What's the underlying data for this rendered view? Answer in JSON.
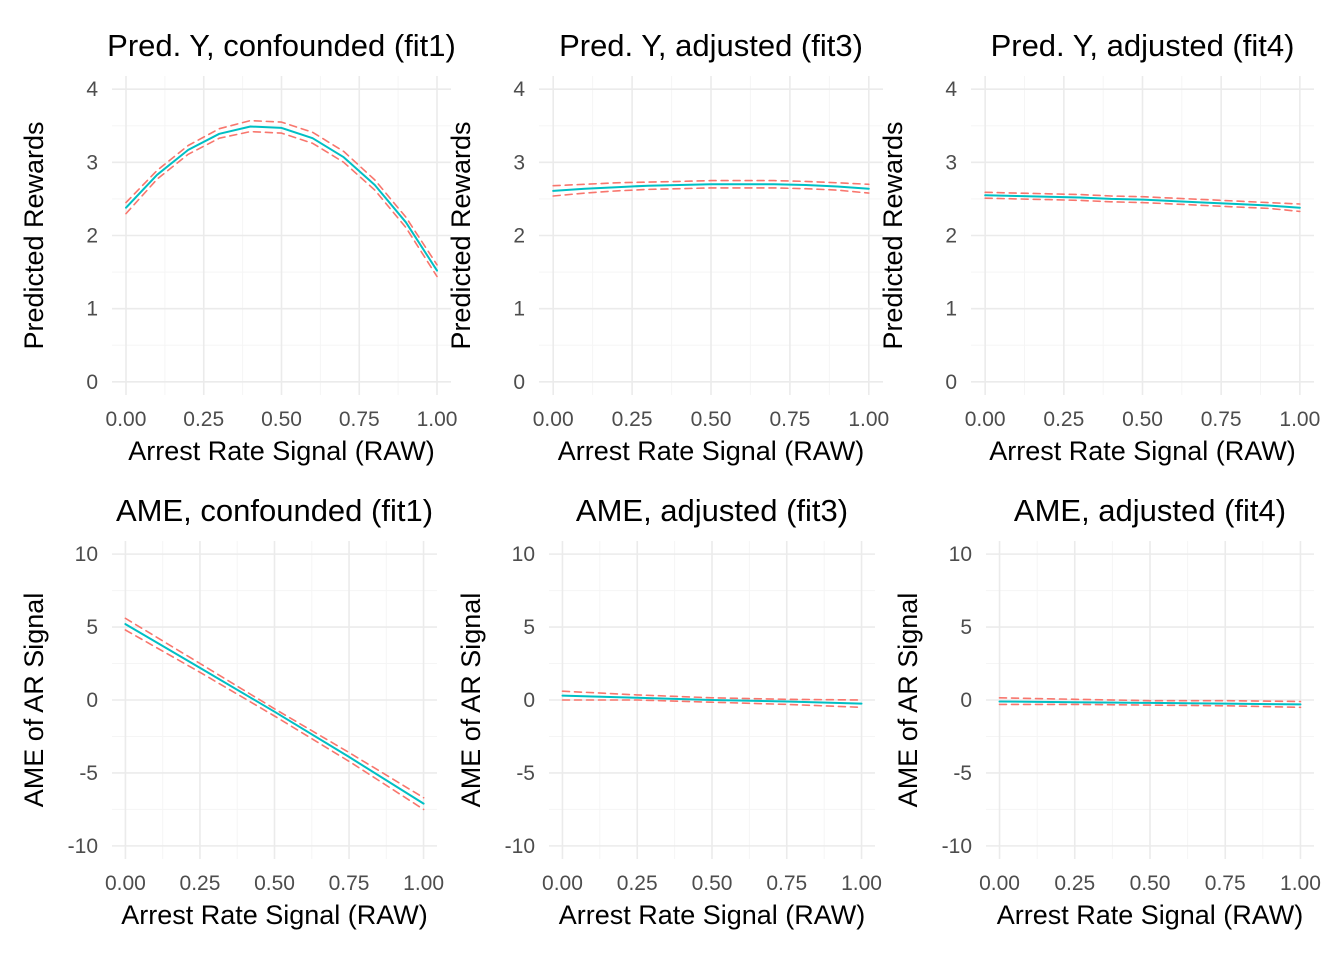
{
  "colors": {
    "fit_line": "#00BFC4",
    "ci_line": "#F8766D",
    "grid_major": "#EBEBEB",
    "grid_minor": "#F5F5F5",
    "tick_text": "#4D4D4D"
  },
  "chart_data": [
    {
      "type": "line",
      "title": "Pred. Y, confounded (fit1)",
      "xlabel": "Arrest Rate Signal (RAW)",
      "ylabel": "Predicted Rewards",
      "xlim": [
        0,
        1
      ],
      "ylim": [
        0,
        4
      ],
      "xticks": [
        0,
        0.25,
        0.5,
        0.75,
        1
      ],
      "xtick_labels": [
        "0.00",
        "0.25",
        "0.50",
        "0.75",
        "1.00"
      ],
      "yticks": [
        0,
        1,
        2,
        3,
        4
      ],
      "ytick_labels": [
        "0",
        "1",
        "2",
        "3",
        "4"
      ],
      "grid": true,
      "x": [
        0,
        0.1,
        0.2,
        0.3,
        0.4,
        0.5,
        0.6,
        0.7,
        0.8,
        0.9,
        1.0
      ],
      "series": [
        {
          "role": "fit",
          "values": [
            2.38,
            2.83,
            3.17,
            3.39,
            3.49,
            3.47,
            3.33,
            3.07,
            2.69,
            2.18,
            1.52
          ]
        },
        {
          "role": "upper",
          "values": [
            2.45,
            2.89,
            3.23,
            3.46,
            3.57,
            3.55,
            3.41,
            3.15,
            2.76,
            2.25,
            1.6
          ]
        },
        {
          "role": "lower",
          "values": [
            2.3,
            2.77,
            3.11,
            3.33,
            3.42,
            3.4,
            3.26,
            3.0,
            2.62,
            2.11,
            1.44
          ]
        }
      ]
    },
    {
      "type": "line",
      "title": "Pred. Y, adjusted (fit3)",
      "xlabel": "Arrest Rate Signal (RAW)",
      "ylabel": "Predicted Rewards",
      "xlim": [
        0,
        1
      ],
      "ylim": [
        0,
        4
      ],
      "xticks": [
        0,
        0.25,
        0.5,
        0.75,
        1
      ],
      "xtick_labels": [
        "0.00",
        "0.25",
        "0.50",
        "0.75",
        "1.00"
      ],
      "yticks": [
        0,
        1,
        2,
        3,
        4
      ],
      "ytick_labels": [
        "0",
        "1",
        "2",
        "3",
        "4"
      ],
      "grid": true,
      "x": [
        0,
        0.1,
        0.2,
        0.3,
        0.4,
        0.5,
        0.6,
        0.7,
        0.8,
        0.9,
        1.0
      ],
      "series": [
        {
          "role": "fit",
          "values": [
            2.61,
            2.64,
            2.66,
            2.68,
            2.69,
            2.7,
            2.7,
            2.7,
            2.69,
            2.67,
            2.64
          ]
        },
        {
          "role": "upper",
          "values": [
            2.68,
            2.7,
            2.72,
            2.73,
            2.74,
            2.75,
            2.75,
            2.75,
            2.74,
            2.72,
            2.7
          ]
        },
        {
          "role": "lower",
          "values": [
            2.54,
            2.58,
            2.61,
            2.63,
            2.64,
            2.65,
            2.65,
            2.65,
            2.64,
            2.62,
            2.58
          ]
        }
      ]
    },
    {
      "type": "line",
      "title": "Pred. Y, adjusted (fit4)",
      "xlabel": "Arrest Rate Signal (RAW)",
      "ylabel": "Predicted Rewards",
      "xlim": [
        0,
        1
      ],
      "ylim": [
        0,
        4
      ],
      "xticks": [
        0,
        0.25,
        0.5,
        0.75,
        1
      ],
      "xtick_labels": [
        "0.00",
        "0.25",
        "0.50",
        "0.75",
        "1.00"
      ],
      "yticks": [
        0,
        1,
        2,
        3,
        4
      ],
      "ytick_labels": [
        "0",
        "1",
        "2",
        "3",
        "4"
      ],
      "grid": true,
      "x": [
        0,
        0.1,
        0.2,
        0.3,
        0.4,
        0.5,
        0.6,
        0.7,
        0.8,
        0.9,
        1.0
      ],
      "series": [
        {
          "role": "fit",
          "values": [
            2.55,
            2.54,
            2.53,
            2.52,
            2.5,
            2.49,
            2.47,
            2.45,
            2.43,
            2.41,
            2.38
          ]
        },
        {
          "role": "upper",
          "values": [
            2.59,
            2.58,
            2.57,
            2.56,
            2.54,
            2.53,
            2.51,
            2.49,
            2.47,
            2.45,
            2.43
          ]
        },
        {
          "role": "lower",
          "values": [
            2.51,
            2.5,
            2.49,
            2.48,
            2.46,
            2.45,
            2.43,
            2.41,
            2.39,
            2.37,
            2.33
          ]
        }
      ]
    },
    {
      "type": "line",
      "title": "AME, confounded (fit1)",
      "xlabel": "Arrest Rate Signal (RAW)",
      "ylabel": "AME of AR Signal",
      "xlim": [
        0,
        1
      ],
      "ylim": [
        -10,
        10
      ],
      "xticks": [
        0,
        0.25,
        0.5,
        0.75,
        1
      ],
      "xtick_labels": [
        "0.00",
        "0.25",
        "0.50",
        "0.75",
        "1.00"
      ],
      "yticks": [
        -10,
        -5,
        0,
        5,
        10
      ],
      "ytick_labels": [
        "-10",
        "-5",
        "0",
        "5",
        "10"
      ],
      "grid": true,
      "x": [
        0,
        0.25,
        0.5,
        0.75,
        1.0
      ],
      "series": [
        {
          "role": "fit",
          "values": [
            5.2,
            2.2,
            -0.8,
            -3.9,
            -7.1
          ]
        },
        {
          "role": "upper",
          "values": [
            5.6,
            2.5,
            -0.6,
            -3.6,
            -6.7
          ]
        },
        {
          "role": "lower",
          "values": [
            4.8,
            1.9,
            -1.1,
            -4.2,
            -7.5
          ]
        }
      ]
    },
    {
      "type": "line",
      "title": "AME, adjusted (fit3)",
      "xlabel": "Arrest Rate Signal (RAW)",
      "ylabel": "AME of AR Signal",
      "xlim": [
        0,
        1
      ],
      "ylim": [
        -10,
        10
      ],
      "xticks": [
        0,
        0.25,
        0.5,
        0.75,
        1
      ],
      "xtick_labels": [
        "0.00",
        "0.25",
        "0.50",
        "0.75",
        "1.00"
      ],
      "yticks": [
        -10,
        -5,
        0,
        5,
        10
      ],
      "ytick_labels": [
        "-10",
        "-5",
        "0",
        "5",
        "10"
      ],
      "grid": true,
      "x": [
        0,
        0.25,
        0.5,
        0.75,
        1.0
      ],
      "series": [
        {
          "role": "fit",
          "values": [
            0.3,
            0.15,
            0.0,
            -0.1,
            -0.25
          ]
        },
        {
          "role": "upper",
          "values": [
            0.6,
            0.35,
            0.15,
            0.05,
            0.0
          ]
        },
        {
          "role": "lower",
          "values": [
            0.0,
            0.0,
            -0.15,
            -0.3,
            -0.5
          ]
        }
      ]
    },
    {
      "type": "line",
      "title": "AME, adjusted (fit4)",
      "xlabel": "Arrest Rate Signal (RAW)",
      "ylabel": "AME of AR Signal",
      "xlim": [
        0,
        1
      ],
      "ylim": [
        -10,
        10
      ],
      "xticks": [
        0,
        0.25,
        0.5,
        0.75,
        1
      ],
      "xtick_labels": [
        "0.00",
        "0.25",
        "0.50",
        "0.75",
        "1.00"
      ],
      "yticks": [
        -10,
        -5,
        0,
        5,
        10
      ],
      "ytick_labels": [
        "-10",
        "-5",
        "0",
        "5",
        "10"
      ],
      "grid": true,
      "x": [
        0,
        0.25,
        0.5,
        0.75,
        1.0
      ],
      "series": [
        {
          "role": "fit",
          "values": [
            -0.1,
            -0.15,
            -0.2,
            -0.25,
            -0.3
          ]
        },
        {
          "role": "upper",
          "values": [
            0.15,
            0.05,
            -0.05,
            -0.05,
            -0.1
          ]
        },
        {
          "role": "lower",
          "values": [
            -0.3,
            -0.3,
            -0.35,
            -0.4,
            -0.5
          ]
        }
      ]
    }
  ]
}
